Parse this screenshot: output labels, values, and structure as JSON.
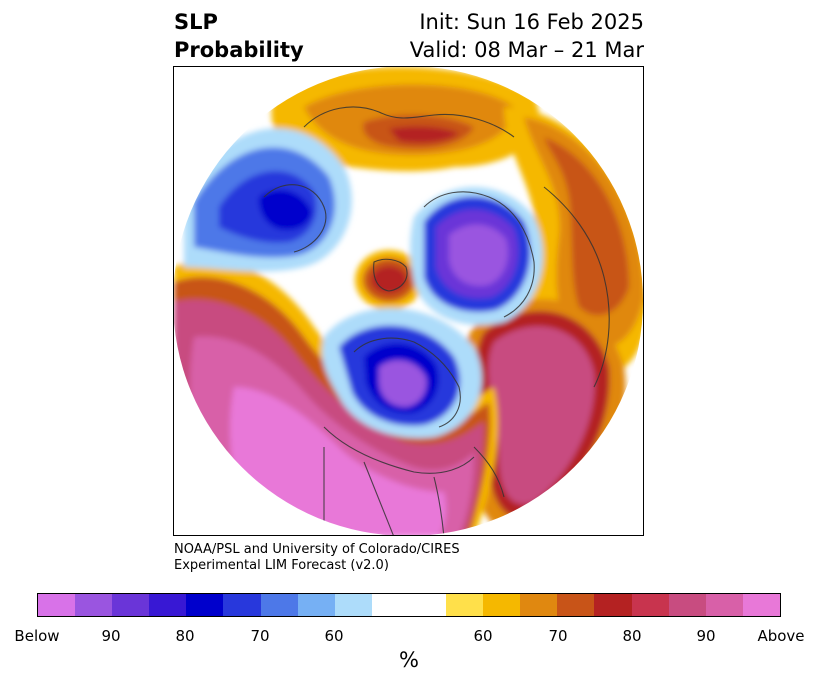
{
  "header": {
    "title_line1": "SLP",
    "title_line2": "Probability",
    "init_line": "Init: Sun 16 Feb 2025",
    "valid_line": "Valid: 08 Mar – 21 Mar"
  },
  "credit": {
    "line1": "NOAA/PSL and University of Colorado/CIRES",
    "line2": "Experimental LIM Forecast (v2.0)"
  },
  "colorbar": {
    "colors": [
      "#d872e8",
      "#9a55e0",
      "#6a35d8",
      "#3818d4",
      "#0000cc",
      "#2838dc",
      "#4d78e8",
      "#76b0f4",
      "#addcfa",
      "#ffffff",
      "#ffffff",
      "#ffe04a",
      "#f5b800",
      "#e08810",
      "#c85418",
      "#b42222",
      "#c8344e",
      "#c84c80",
      "#d860a8",
      "#e878d8"
    ],
    "tick_labels": [
      "Below",
      "90",
      "80",
      "70",
      "60",
      "60",
      "70",
      "80",
      "90",
      "Above"
    ],
    "unit_label": "%"
  },
  "map": {
    "projection": "north-polar-stereographic",
    "features": [
      {
        "name": "above-eurasia-north",
        "category": "above",
        "color": "#e08810"
      },
      {
        "name": "above-siberia-east",
        "category": "above",
        "color": "#c85418"
      },
      {
        "name": "above-pacific",
        "category": "above",
        "color": "#d860a8"
      },
      {
        "name": "above-north-america",
        "category": "above",
        "color": "#e878d8"
      },
      {
        "name": "above-arctic-center",
        "category": "above",
        "color": "#b42222"
      },
      {
        "name": "below-north-atlantic",
        "category": "below",
        "color": "#6a35d8"
      },
      {
        "name": "below-east-asia",
        "category": "below",
        "color": "#9a55e0"
      },
      {
        "name": "below-europe-west",
        "category": "below",
        "color": "#0000cc"
      }
    ]
  }
}
